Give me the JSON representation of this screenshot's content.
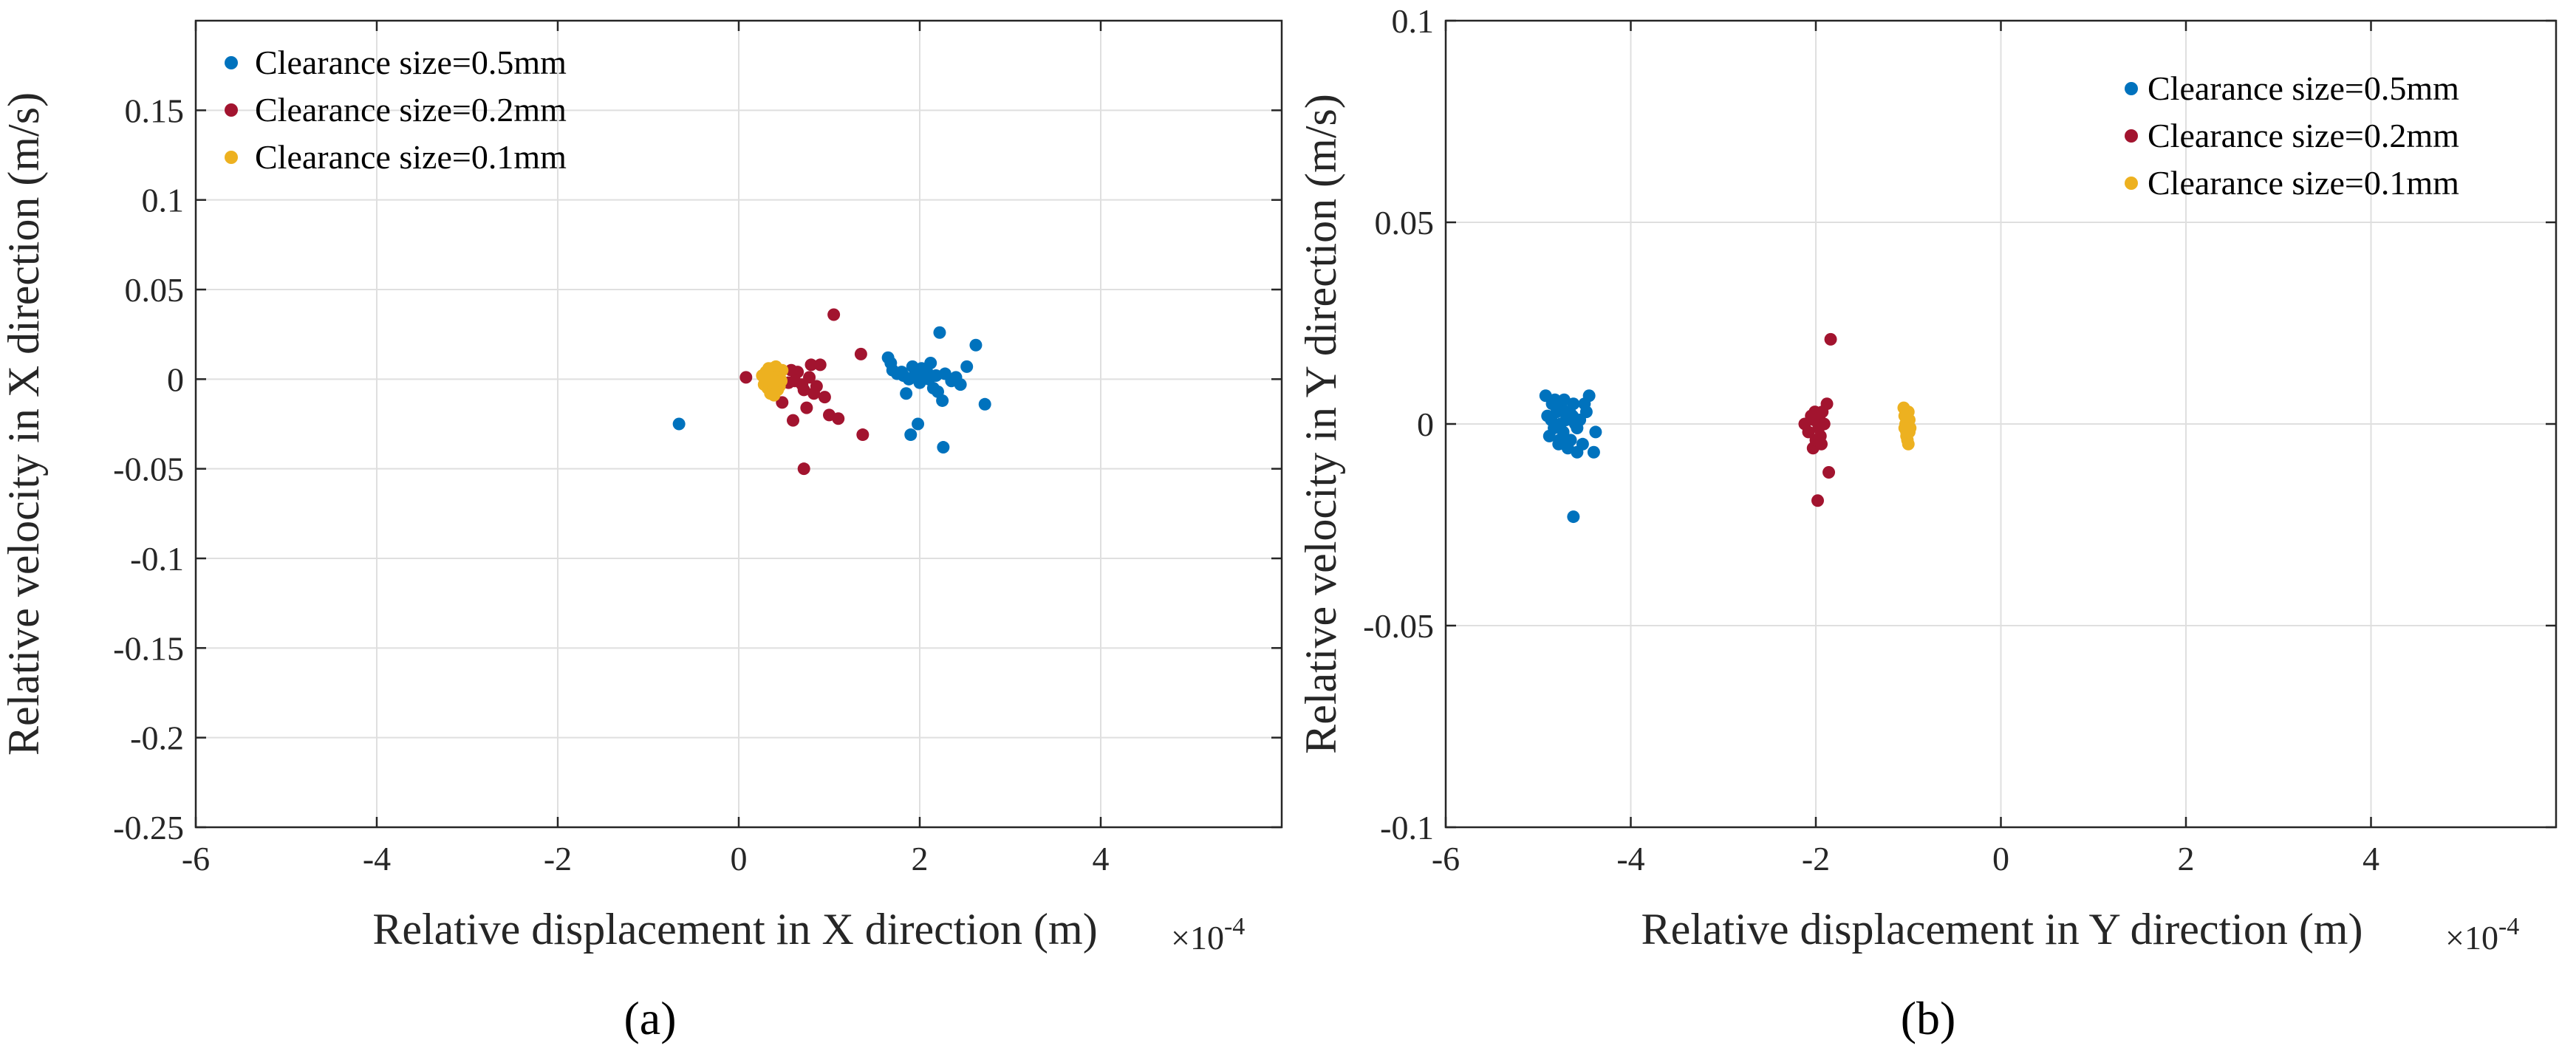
{
  "chart_data": [
    {
      "type": "scatter",
      "id": "a",
      "caption": "(a)",
      "xlabel": "Relative displacement in X direction (m)",
      "ylabel": "Relative velocity in X direction (m/s)",
      "x_exponent_base": "×10",
      "x_exponent_power": "-4",
      "xlim": [
        -6,
        6
      ],
      "ylim": [
        -0.25,
        0.2
      ],
      "xticks": [
        -6,
        -4,
        -2,
        0,
        2,
        4
      ],
      "yticks": [
        -0.25,
        -0.2,
        -0.15,
        -0.1,
        -0.05,
        0,
        0.05,
        0.1,
        0.15
      ],
      "xtick_labels": [
        "-6",
        "-4",
        "-2",
        "0",
        "2",
        "4"
      ],
      "ytick_labels": [
        "-0.25",
        "-0.2",
        "-0.15",
        "-0.1",
        "-0.05",
        "0",
        "0.05",
        "0.1",
        "0.15"
      ],
      "grid": true,
      "legend_position": "top-left",
      "series": [
        {
          "name": "Clearance size=0.5mm",
          "color": "#0072BD",
          "x": [
            -0.66,
            1.65,
            1.7,
            1.75,
            1.82,
            1.85,
            1.88,
            1.92,
            1.95,
            2.0,
            2.02,
            2.05,
            2.08,
            2.1,
            2.12,
            2.15,
            2.18,
            2.22,
            2.25,
            2.28,
            2.35,
            2.4,
            2.45,
            2.52,
            2.62,
            2.72,
            1.9,
            1.98,
            2.26,
            1.8,
            2.2,
            1.68,
            1.93
          ],
          "y": [
            -0.025,
            0.012,
            0.005,
            0.003,
            0.002,
            -0.008,
            0.0,
            0.007,
            0.003,
            -0.002,
            0.006,
            0.001,
            0.004,
            0.0,
            0.009,
            -0.005,
            0.002,
            0.026,
            -0.012,
            0.003,
            -0.001,
            0.001,
            -0.003,
            0.007,
            0.019,
            -0.014,
            -0.031,
            -0.025,
            -0.038,
            0.004,
            -0.007,
            0.009,
            0.001
          ]
        },
        {
          "name": "Clearance size=0.2mm",
          "color": "#A2142F",
          "x": [
            0.08,
            0.28,
            0.42,
            0.48,
            0.55,
            0.6,
            0.65,
            0.7,
            0.72,
            0.75,
            0.78,
            0.8,
            0.83,
            0.86,
            0.9,
            0.95,
            1.0,
            1.05,
            1.1,
            1.35,
            1.37,
            0.72,
            0.58,
            0.62
          ],
          "y": [
            0.001,
            0.002,
            0.003,
            -0.013,
            -0.002,
            -0.023,
            0.004,
            -0.003,
            -0.05,
            -0.016,
            0.001,
            0.008,
            -0.008,
            -0.004,
            0.008,
            -0.01,
            -0.02,
            0.036,
            -0.022,
            0.014,
            -0.031,
            -0.006,
            0.005,
            -0.001
          ]
        },
        {
          "name": "Clearance size=0.1mm",
          "color": "#EDB120",
          "x": [
            0.26,
            0.28,
            0.3,
            0.32,
            0.33,
            0.35,
            0.36,
            0.38,
            0.4,
            0.41,
            0.43,
            0.44,
            0.46,
            0.48,
            0.3,
            0.34,
            0.39,
            0.45,
            0.37,
            0.42,
            0.31,
            0.47
          ],
          "y": [
            0.002,
            -0.003,
            0.004,
            -0.005,
            0.006,
            -0.008,
            0.001,
            0.005,
            -0.002,
            0.007,
            -0.006,
            0.003,
            0.0,
            0.005,
            -0.001,
            0.002,
            -0.009,
            -0.004,
            0.006,
            0.001,
            0.0,
            -0.001
          ]
        }
      ]
    },
    {
      "type": "scatter",
      "id": "b",
      "caption": "(b)",
      "xlabel": "Relative displacement in Y direction (m)",
      "ylabel": "Relative velocity in Y direction (m/s)",
      "x_exponent_base": "×10",
      "x_exponent_power": "-4",
      "xlim": [
        -6,
        6
      ],
      "ylim": [
        -0.1,
        0.1
      ],
      "xticks": [
        -6,
        -4,
        -2,
        0,
        2,
        4
      ],
      "yticks": [
        -0.1,
        -0.05,
        0,
        0.05,
        0.1
      ],
      "xtick_labels": [
        "-6",
        "-4",
        "-2",
        "0",
        "2",
        "4"
      ],
      "ytick_labels": [
        "-0.1",
        "-0.05",
        "0",
        "0.05",
        "0.1"
      ],
      "grid": true,
      "legend_position": "top-right",
      "series": [
        {
          "name": "Clearance size=0.5mm",
          "color": "#0072BD",
          "x": [
            -4.92,
            -4.9,
            -4.88,
            -4.85,
            -4.83,
            -4.82,
            -4.8,
            -4.78,
            -4.76,
            -4.75,
            -4.73,
            -4.72,
            -4.7,
            -4.68,
            -4.66,
            -4.65,
            -4.63,
            -4.62,
            -4.6,
            -4.58,
            -4.55,
            -4.52,
            -4.5,
            -4.48,
            -4.45,
            -4.4,
            -4.38,
            -4.62,
            -4.77,
            -4.86,
            -4.69,
            -4.58
          ],
          "y": [
            0.007,
            0.002,
            -0.003,
            0.005,
            -0.001,
            0.006,
            0.003,
            -0.005,
            0.0,
            0.004,
            -0.002,
            0.006,
            0.001,
            -0.006,
            0.003,
            -0.004,
            0.002,
            -0.023,
            0.0,
            -0.007,
            0.001,
            -0.005,
            0.005,
            0.003,
            0.007,
            -0.007,
            -0.002,
            0.005,
            -0.004,
            0.001,
            0.003,
            -0.001
          ]
        },
        {
          "name": "Clearance size=0.2mm",
          "color": "#A2142F",
          "x": [
            -2.12,
            -2.08,
            -2.05,
            -2.03,
            -2.01,
            -2.0,
            -1.98,
            -1.96,
            -1.95,
            -1.93,
            -1.91,
            -1.88,
            -1.86,
            -1.84,
            -1.97,
            -2.02,
            -1.94
          ],
          "y": [
            0.0,
            -0.002,
            0.002,
            -0.006,
            0.003,
            -0.004,
            -0.019,
            0.001,
            -0.003,
            0.003,
            0.0,
            0.005,
            -0.012,
            0.021,
            -0.001,
            0.001,
            -0.005
          ]
        },
        {
          "name": "Clearance size=0.1mm",
          "color": "#EDB120",
          "x": [
            -1.05,
            -1.04,
            -1.03,
            -1.02,
            -1.01,
            -1.0,
            -0.99,
            -0.98,
            -1.02,
            -1.0,
            -1.03,
            -0.99,
            -1.01,
            -1.04
          ],
          "y": [
            0.004,
            0.002,
            0.0,
            -0.002,
            -0.004,
            0.003,
            0.001,
            -0.001,
            -0.003,
            -0.005,
            0.002,
            -0.002,
            0.001,
            -0.001
          ]
        }
      ]
    }
  ]
}
